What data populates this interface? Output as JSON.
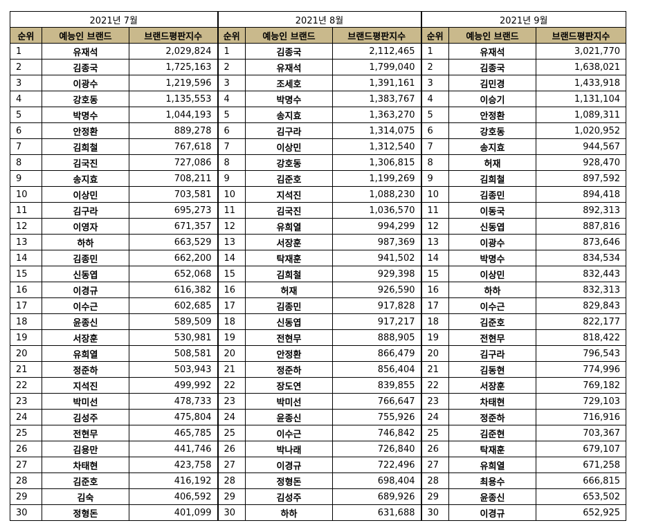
{
  "columns": {
    "rank": "순위",
    "brand": "예능인 브랜드",
    "score": "브랜드평판지수"
  },
  "months": [
    {
      "title": "2021년 7월",
      "rows": [
        [
          "1",
          "유재석",
          "2,029,824"
        ],
        [
          "2",
          "김종국",
          "1,725,163"
        ],
        [
          "3",
          "이광수",
          "1,219,596"
        ],
        [
          "4",
          "강호동",
          "1,135,553"
        ],
        [
          "5",
          "박명수",
          "1,044,193"
        ],
        [
          "6",
          "안정환",
          "889,278"
        ],
        [
          "7",
          "김희철",
          "767,618"
        ],
        [
          "8",
          "김국진",
          "727,086"
        ],
        [
          "9",
          "송지효",
          "708,211"
        ],
        [
          "10",
          "이상민",
          "703,581"
        ],
        [
          "11",
          "김구라",
          "695,273"
        ],
        [
          "12",
          "이영자",
          "671,357"
        ],
        [
          "13",
          "하하",
          "663,529"
        ],
        [
          "14",
          "김종민",
          "662,200"
        ],
        [
          "15",
          "신동엽",
          "652,068"
        ],
        [
          "16",
          "이경규",
          "616,382"
        ],
        [
          "17",
          "이수근",
          "602,685"
        ],
        [
          "18",
          "윤종신",
          "589,509"
        ],
        [
          "19",
          "서장훈",
          "530,981"
        ],
        [
          "20",
          "유희열",
          "508,581"
        ],
        [
          "21",
          "정준하",
          "503,943"
        ],
        [
          "22",
          "지석진",
          "499,992"
        ],
        [
          "23",
          "박미선",
          "478,733"
        ],
        [
          "24",
          "김성주",
          "475,804"
        ],
        [
          "25",
          "전현무",
          "465,785"
        ],
        [
          "26",
          "김용만",
          "441,746"
        ],
        [
          "27",
          "차태현",
          "423,758"
        ],
        [
          "28",
          "김준호",
          "416,192"
        ],
        [
          "29",
          "김숙",
          "406,592"
        ],
        [
          "30",
          "정형돈",
          "401,099"
        ]
      ]
    },
    {
      "title": "2021년 8월",
      "rows": [
        [
          "1",
          "김종국",
          "2,112,465"
        ],
        [
          "2",
          "유재석",
          "1,799,040"
        ],
        [
          "3",
          "조세호",
          "1,391,161"
        ],
        [
          "4",
          "박명수",
          "1,383,767"
        ],
        [
          "5",
          "송지효",
          "1,363,270"
        ],
        [
          "6",
          "김구라",
          "1,314,075"
        ],
        [
          "7",
          "이상민",
          "1,312,540"
        ],
        [
          "8",
          "강호동",
          "1,306,815"
        ],
        [
          "9",
          "김준호",
          "1,199,269"
        ],
        [
          "10",
          "지석진",
          "1,088,230"
        ],
        [
          "11",
          "김국진",
          "1,036,570"
        ],
        [
          "12",
          "유희열",
          "994,299"
        ],
        [
          "13",
          "서장훈",
          "987,369"
        ],
        [
          "14",
          "탁재훈",
          "941,502"
        ],
        [
          "15",
          "김희철",
          "929,398"
        ],
        [
          "16",
          "허재",
          "926,590"
        ],
        [
          "17",
          "김종민",
          "917,828"
        ],
        [
          "18",
          "신동엽",
          "917,217"
        ],
        [
          "19",
          "전현무",
          "888,905"
        ],
        [
          "20",
          "안정환",
          "866,479"
        ],
        [
          "21",
          "정준하",
          "856,404"
        ],
        [
          "22",
          "장도연",
          "839,855"
        ],
        [
          "23",
          "박미선",
          "766,647"
        ],
        [
          "24",
          "윤종신",
          "755,926"
        ],
        [
          "25",
          "이수근",
          "746,842"
        ],
        [
          "26",
          "박나래",
          "726,840"
        ],
        [
          "27",
          "이경규",
          "722,496"
        ],
        [
          "28",
          "정형돈",
          "698,404"
        ],
        [
          "29",
          "김성주",
          "689,926"
        ],
        [
          "30",
          "하하",
          "631,688"
        ]
      ]
    },
    {
      "title": "2021년 9월",
      "rows": [
        [
          "1",
          "유재석",
          "3,021,770"
        ],
        [
          "2",
          "김종국",
          "1,638,021"
        ],
        [
          "3",
          "김민경",
          "1,433,918"
        ],
        [
          "4",
          "이승기",
          "1,131,104"
        ],
        [
          "5",
          "안정환",
          "1,089,311"
        ],
        [
          "6",
          "강호동",
          "1,020,952"
        ],
        [
          "7",
          "송지효",
          "944,567"
        ],
        [
          "8",
          "허재",
          "928,470"
        ],
        [
          "9",
          "김희철",
          "897,592"
        ],
        [
          "10",
          "김종민",
          "894,418"
        ],
        [
          "11",
          "이동국",
          "892,313"
        ],
        [
          "12",
          "신동엽",
          "887,816"
        ],
        [
          "13",
          "이광수",
          "873,646"
        ],
        [
          "14",
          "박명수",
          "834,534"
        ],
        [
          "15",
          "이상민",
          "832,443"
        ],
        [
          "16",
          "하하",
          "832,313"
        ],
        [
          "17",
          "이수근",
          "829,843"
        ],
        [
          "18",
          "김준호",
          "822,177"
        ],
        [
          "19",
          "전현무",
          "818,422"
        ],
        [
          "20",
          "김구라",
          "796,543"
        ],
        [
          "21",
          "김동현",
          "774,996"
        ],
        [
          "22",
          "서장훈",
          "769,182"
        ],
        [
          "23",
          "차태현",
          "729,103"
        ],
        [
          "24",
          "정준하",
          "716,916"
        ],
        [
          "25",
          "김준현",
          "703,367"
        ],
        [
          "26",
          "탁재훈",
          "679,107"
        ],
        [
          "27",
          "유희열",
          "671,258"
        ],
        [
          "28",
          "최용수",
          "666,815"
        ],
        [
          "29",
          "윤종신",
          "653,502"
        ],
        [
          "30",
          "이경규",
          "652,925"
        ]
      ]
    }
  ]
}
